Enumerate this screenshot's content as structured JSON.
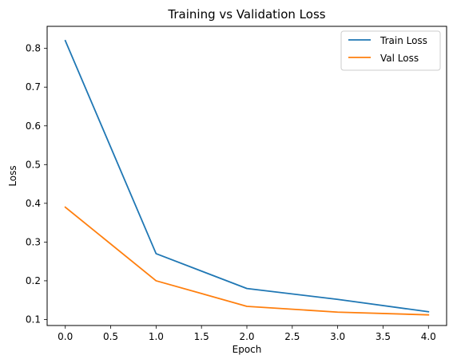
{
  "chart_data": {
    "type": "line",
    "title": "Training vs Validation Loss",
    "xlabel": "Epoch",
    "ylabel": "Loss",
    "x": [
      0,
      1,
      2,
      3,
      4
    ],
    "xlim": [
      -0.2,
      4.2
    ],
    "ylim": [
      0.0845,
      0.857
    ],
    "xticks": [
      "0.0",
      "0.5",
      "1.0",
      "1.5",
      "2.0",
      "2.5",
      "3.0",
      "3.5",
      "4.0"
    ],
    "yticks": [
      "0.1",
      "0.2",
      "0.3",
      "0.4",
      "0.5",
      "0.6",
      "0.7",
      "0.8"
    ],
    "grid": false,
    "legend_position": "top-right",
    "series": [
      {
        "name": "Train Loss",
        "color": "#1f77b4",
        "values": [
          0.82,
          0.27,
          0.18,
          0.152,
          0.12
        ]
      },
      {
        "name": "Val Loss",
        "color": "#ff7f0e",
        "values": [
          0.39,
          0.2,
          0.134,
          0.119,
          0.112
        ]
      }
    ]
  }
}
